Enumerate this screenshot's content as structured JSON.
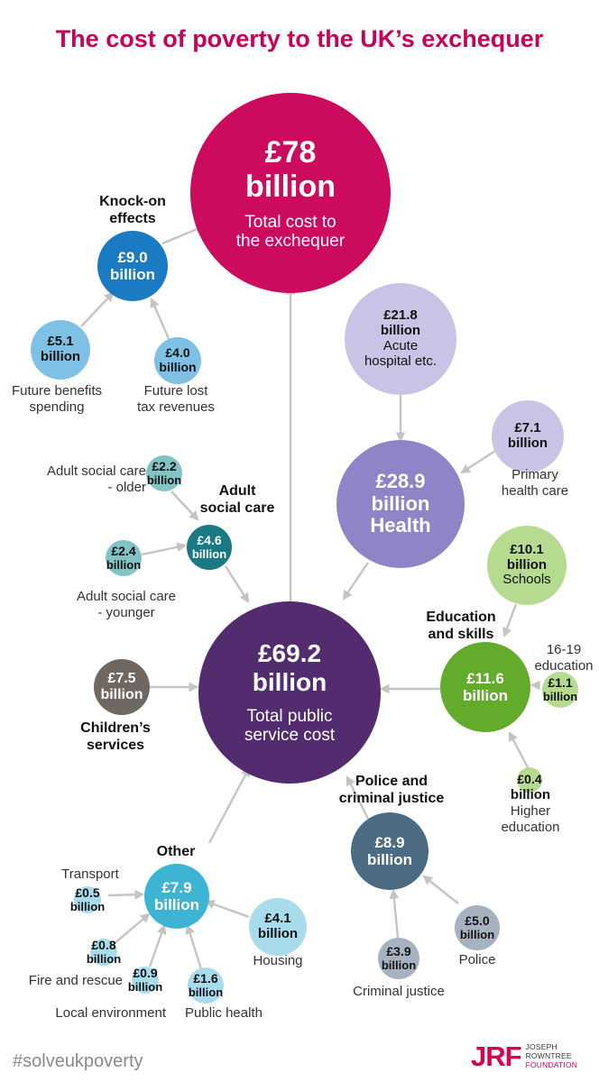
{
  "title": "The cost of poverty to the UK’s exchequer",
  "colors": {
    "magenta": "#cc0a5e",
    "purple": "#522c6e",
    "knock": "#1b7bc2",
    "knockLight": "#7ec1e5",
    "health": "#8e84c8",
    "healthLight": "#c9c4e6",
    "social": "#197a84",
    "socialLight": "#82c4c6",
    "education": "#63ab2a",
    "educationLight": "#b5da90",
    "children": "#6f6762",
    "police": "#4a6b82",
    "policeLight": "#a6b2bf",
    "other": "#3eb4d4",
    "otherLight": "#a8dcec",
    "arrow": "#c4c4c4"
  },
  "total": {
    "amount_line1": "£78",
    "amount_line2": "billion",
    "desc_line1": "Total cost to",
    "desc_line2": "the exchequer"
  },
  "knock_on": {
    "group": [
      "Knock-on",
      "effects"
    ],
    "amount": "£9.0",
    "unit": "billion"
  },
  "future_benefits": {
    "amount": "£5.1",
    "unit": "billion",
    "label": [
      "Future benefits",
      "spending"
    ]
  },
  "future_tax": {
    "amount": "£4.0",
    "unit": "billion",
    "label": [
      "Future lost",
      "tax revenues"
    ]
  },
  "acute": {
    "amount": "£21.8",
    "unit": "billion",
    "desc": [
      "Acute",
      "hospital etc."
    ]
  },
  "primary": {
    "amount": "£7.1",
    "unit": "billion",
    "label": [
      "Primary",
      "health care"
    ]
  },
  "health": {
    "amount": "£28.9",
    "unit": "billion",
    "name": "Health"
  },
  "asc_older": {
    "amount": "£2.2",
    "unit": "billion",
    "label": [
      "Adult social care",
      "- older"
    ]
  },
  "asc_younger": {
    "amount": "£2.4",
    "unit": "billion",
    "label": [
      "Adult social care",
      "- younger"
    ]
  },
  "asc": {
    "group": [
      "Adult",
      "social care"
    ],
    "amount": "£4.6",
    "unit": "billion"
  },
  "schools": {
    "amount": "£10.1",
    "unit": "billion",
    "desc": "Schools"
  },
  "education": {
    "group": [
      "Education",
      "and skills"
    ],
    "amount": "£11.6",
    "unit": "billion"
  },
  "ed1619": {
    "amount": "£1.1",
    "unit": "billion",
    "label": [
      "16-19",
      "education"
    ]
  },
  "higher": {
    "amount": "£0.4",
    "unit": "billion",
    "label": [
      "Higher",
      "education"
    ]
  },
  "public_service": {
    "amount_line1": "£69.2",
    "amount_line2": "billion",
    "desc_line1": "Total public",
    "desc_line2": "service cost"
  },
  "children": {
    "amount": "£7.5",
    "unit": "billion",
    "group": [
      "Children’s",
      "services"
    ]
  },
  "police_cj": {
    "group": [
      "Police and",
      "criminal justice"
    ],
    "amount": "£8.9",
    "unit": "billion"
  },
  "criminal_justice": {
    "amount": "£3.9",
    "unit": "billion",
    "label": "Criminal justice"
  },
  "police": {
    "amount": "£5.0",
    "unit": "billion",
    "label": "Police"
  },
  "other": {
    "group": "Other",
    "amount": "£7.9",
    "unit": "billion"
  },
  "transport": {
    "amount": "£0.5",
    "unit": "billion",
    "label": "Transport"
  },
  "fire": {
    "amount": "£0.8",
    "unit": "billion",
    "label": "Fire and rescue"
  },
  "local_env": {
    "amount": "£0.9",
    "unit": "billion",
    "label": "Local environment"
  },
  "public_health": {
    "amount": "£1.6",
    "unit": "billion",
    "label": "Public health"
  },
  "housing": {
    "amount": "£4.1",
    "unit": "billion",
    "label": "Housing"
  },
  "hashtag": "#solveukpoverty",
  "logo": {
    "mark": "JRF",
    "line1": "JOSEPH",
    "line2": "ROWNTREE",
    "line3": "FOUNDATION"
  }
}
